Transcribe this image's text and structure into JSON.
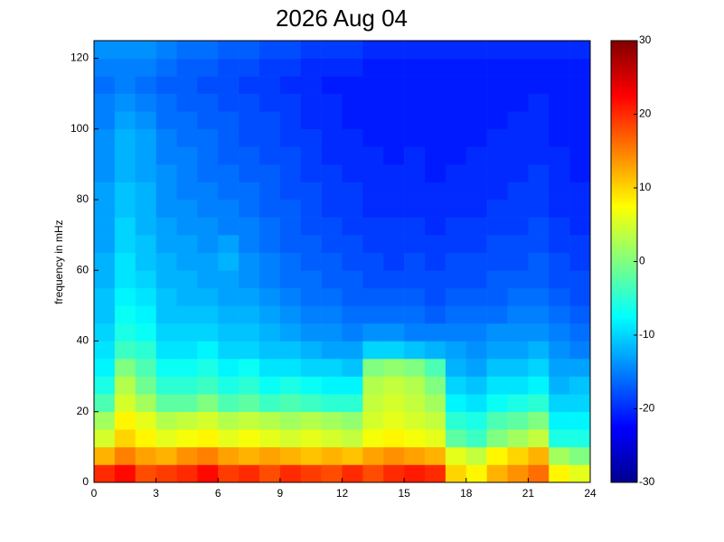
{
  "chart_data": {
    "type": "heatmap",
    "title": "2026 Aug 04",
    "y_label": "frequency in mHz",
    "colorscale": "jet",
    "x": [
      0,
      1,
      2,
      3,
      4,
      5,
      6,
      7,
      8,
      9,
      10,
      11,
      12,
      13,
      14,
      15,
      16,
      17,
      18,
      19,
      20,
      21,
      22,
      23
    ],
    "y": [
      0,
      5,
      10,
      15,
      20,
      25,
      30,
      35,
      40,
      45,
      50,
      55,
      60,
      65,
      70,
      75,
      80,
      85,
      90,
      95,
      100,
      105,
      110,
      115,
      120
    ],
    "xlim": [
      0,
      24
    ],
    "ylim": [
      0,
      125
    ],
    "xticks": [
      0,
      3,
      6,
      9,
      12,
      15,
      18,
      21,
      24
    ],
    "yticks": [
      0,
      20,
      40,
      60,
      80,
      100,
      120
    ],
    "clim": [
      -30,
      30
    ],
    "cticks": [
      -30,
      -20,
      -10,
      0,
      10,
      20,
      30
    ],
    "z": [
      [
        20,
        22,
        18,
        19,
        20,
        22,
        19,
        20,
        18,
        20,
        19,
        18,
        20,
        18,
        20,
        21,
        20,
        10,
        8,
        12,
        14,
        16,
        8,
        6
      ],
      [
        12,
        15,
        13,
        12,
        14,
        15,
        13,
        12,
        13,
        12,
        11,
        12,
        11,
        13,
        14,
        13,
        12,
        6,
        4,
        8,
        10,
        12,
        2,
        0
      ],
      [
        5,
        10,
        8,
        6,
        7,
        8,
        6,
        7,
        6,
        5,
        6,
        5,
        4,
        7,
        8,
        7,
        6,
        -2,
        -4,
        0,
        2,
        4,
        -6,
        -6
      ],
      [
        2,
        8,
        6,
        3,
        4,
        5,
        3,
        4,
        3,
        2,
        3,
        2,
        1,
        5,
        6,
        5,
        4,
        -5,
        -6,
        -3,
        -2,
        0,
        -8,
        -8
      ],
      [
        -3,
        5,
        2,
        -2,
        -2,
        0,
        -3,
        -2,
        -4,
        -3,
        -4,
        -5,
        -5,
        4,
        5,
        4,
        2,
        -8,
        -9,
        -7,
        -6,
        -5,
        -10,
        -10
      ],
      [
        -6,
        3,
        -1,
        -5,
        -5,
        -4,
        -6,
        -5,
        -7,
        -6,
        -7,
        -8,
        -8,
        3,
        4,
        3,
        0,
        -10,
        -11,
        -9,
        -9,
        -8,
        -12,
        -11
      ],
      [
        -8,
        0,
        -3,
        -7,
        -7,
        -6,
        -8,
        -7,
        -9,
        -9,
        -10,
        -10,
        -11,
        0,
        1,
        0,
        -3,
        -12,
        -13,
        -11,
        -11,
        -10,
        -13,
        -13
      ],
      [
        -9,
        -4,
        -5,
        -9,
        -9,
        -8,
        -10,
        -10,
        -11,
        -11,
        -12,
        -13,
        -13,
        -10,
        -10,
        -11,
        -12,
        -13,
        -14,
        -13,
        -13,
        -12,
        -14,
        -15
      ],
      [
        -10,
        -6,
        -7,
        -10,
        -10,
        -10,
        -11,
        -11,
        -12,
        -13,
        -14,
        -14,
        -15,
        -14,
        -14,
        -15,
        -15,
        -15,
        -15,
        -14,
        -14,
        -14,
        -15,
        -16
      ],
      [
        -11,
        -7,
        -8,
        -11,
        -11,
        -11,
        -12,
        -12,
        -13,
        -14,
        -15,
        -15,
        -16,
        -16,
        -16,
        -16,
        -17,
        -16,
        -16,
        -16,
        -15,
        -15,
        -16,
        -17
      ],
      [
        -11,
        -8,
        -9,
        -11,
        -12,
        -12,
        -13,
        -13,
        -14,
        -15,
        -16,
        -16,
        -17,
        -17,
        -17,
        -17,
        -18,
        -17,
        -17,
        -17,
        -16,
        -16,
        -17,
        -18
      ],
      [
        -12,
        -9,
        -10,
        -12,
        -12,
        -13,
        -13,
        -14,
        -15,
        -16,
        -16,
        -17,
        -17,
        -18,
        -18,
        -18,
        -18,
        -18,
        -18,
        -17,
        -17,
        -17,
        -18,
        -18
      ],
      [
        -12,
        -9,
        -11,
        -12,
        -13,
        -13,
        -12,
        -14,
        -15,
        -16,
        -17,
        -17,
        -18,
        -18,
        -19,
        -18,
        -19,
        -18,
        -18,
        -18,
        -18,
        -17,
        -18,
        -19
      ],
      [
        -13,
        -10,
        -11,
        -13,
        -13,
        -14,
        -13,
        -15,
        -16,
        -17,
        -17,
        -18,
        -18,
        -19,
        -19,
        -19,
        -19,
        -19,
        -19,
        -18,
        -18,
        -18,
        -19,
        -19
      ],
      [
        -13,
        -10,
        -12,
        -13,
        -14,
        -14,
        -15,
        -15,
        -16,
        -17,
        -18,
        -18,
        -19,
        -19,
        -19,
        -19,
        -20,
        -19,
        -19,
        -19,
        -19,
        -18,
        -19,
        -20
      ],
      [
        -13,
        -11,
        -12,
        -14,
        -14,
        -15,
        -15,
        -16,
        -17,
        -17,
        -18,
        -19,
        -19,
        -20,
        -20,
        -20,
        -20,
        -20,
        -20,
        -19,
        -19,
        -19,
        -20,
        -20
      ],
      [
        -13,
        -11,
        -12,
        -14,
        -15,
        -15,
        -16,
        -16,
        -17,
        -18,
        -18,
        -19,
        -19,
        -20,
        -20,
        -20,
        -20,
        -20,
        -20,
        -20,
        -19,
        -19,
        -20,
        -20
      ],
      [
        -14,
        -12,
        -13,
        -14,
        -15,
        -16,
        -16,
        -17,
        -17,
        -18,
        -19,
        -19,
        -20,
        -20,
        -20,
        -20,
        -21,
        -20,
        -20,
        -20,
        -20,
        -19,
        -20,
        -21
      ],
      [
        -14,
        -12,
        -13,
        -15,
        -15,
        -16,
        -17,
        -17,
        -18,
        -18,
        -19,
        -20,
        -20,
        -20,
        -21,
        -20,
        -21,
        -21,
        -20,
        -20,
        -20,
        -20,
        -20,
        -21
      ],
      [
        -14,
        -12,
        -13,
        -15,
        -16,
        -16,
        -17,
        -18,
        -18,
        -19,
        -19,
        -20,
        -20,
        -21,
        -21,
        -21,
        -21,
        -21,
        -21,
        -20,
        -20,
        -20,
        -21,
        -21
      ],
      [
        -15,
        -13,
        -14,
        -16,
        -16,
        -17,
        -17,
        -18,
        -18,
        -19,
        -20,
        -20,
        -21,
        -21,
        -21,
        -21,
        -21,
        -21,
        -21,
        -21,
        -20,
        -20,
        -21,
        -21
      ],
      [
        -15,
        -14,
        -15,
        -16,
        -17,
        -17,
        -18,
        -18,
        -19,
        -19,
        -20,
        -20,
        -21,
        -21,
        -21,
        -21,
        -21,
        -21,
        -21,
        -21,
        -21,
        -20,
        -21,
        -21
      ],
      [
        -16,
        -15,
        -16,
        -17,
        -17,
        -18,
        -18,
        -19,
        -19,
        -20,
        -20,
        -21,
        -21,
        -21,
        -21,
        -21,
        -21,
        -21,
        -21,
        -21,
        -21,
        -21,
        -21,
        -21
      ],
      [
        -15,
        -15,
        -15,
        -16,
        -17,
        -17,
        -18,
        -18,
        -19,
        -19,
        -20,
        -20,
        -20,
        -21,
        -21,
        -21,
        -21,
        -21,
        -21,
        -21,
        -21,
        -21,
        -21,
        -21
      ],
      [
        -14,
        -14,
        -14,
        -15,
        -16,
        -16,
        -17,
        -17,
        -18,
        -18,
        -19,
        -19,
        -19,
        -20,
        -20,
        -20,
        -20,
        -20,
        -20,
        -20,
        -20,
        -20,
        -20,
        -20
      ]
    ]
  }
}
